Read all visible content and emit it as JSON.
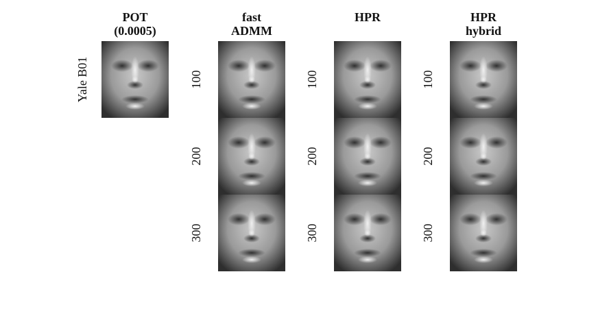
{
  "columns": [
    {
      "title": [
        "POT",
        "(0.0005)"
      ]
    },
    {
      "title": [
        "fast",
        "ADMM"
      ]
    },
    {
      "title": [
        "HPR"
      ]
    },
    {
      "title": [
        "HPR",
        "hybrid"
      ]
    }
  ],
  "row_label": "Yale B01",
  "iterations": [
    100,
    200,
    300
  ]
}
